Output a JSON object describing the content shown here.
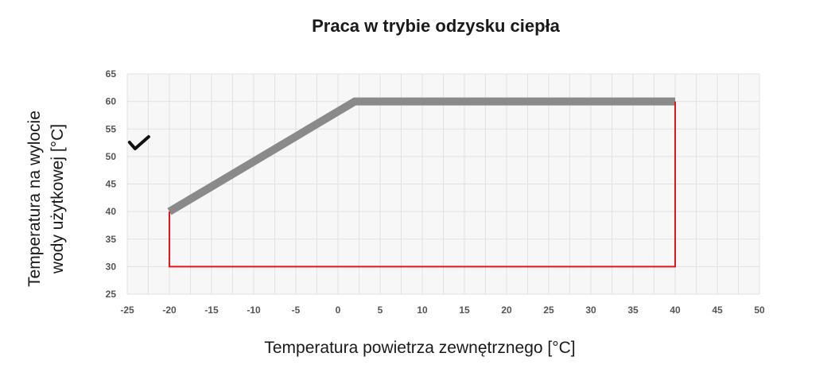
{
  "chart_data": {
    "type": "line",
    "title": "Praca w trybie odzysku ciepła",
    "xlabel": "Temperatura powietrza zewnętrznego [°C]",
    "ylabel_lines": [
      "Temperatura na wylocie",
      "wody użytkowej [°C]"
    ],
    "xlim": [
      -25,
      50
    ],
    "ylim": [
      25,
      65
    ],
    "x_ticks": [
      "-25",
      "-20",
      "-15",
      "-10",
      "-5",
      "0",
      "5",
      "10",
      "15",
      "20",
      "25",
      "30",
      "35",
      "40",
      "45",
      "50"
    ],
    "y_ticks": [
      "65",
      "60",
      "55",
      "50",
      "45",
      "40",
      "35",
      "30",
      "25"
    ],
    "grid": true,
    "series": [
      {
        "style": "thick-line",
        "color": "#8a8a8a",
        "x": [
          -20,
          2,
          40
        ],
        "y": [
          40,
          60,
          60
        ]
      },
      {
        "style": "outline",
        "color": "#e8141c",
        "x": [
          40,
          40,
          -20,
          -20
        ],
        "y": [
          60,
          30,
          30,
          40
        ]
      }
    ],
    "annotations": [
      {
        "type": "checkmark",
        "icon": "check-icon",
        "x": -23.5,
        "y": 52
      }
    ]
  }
}
